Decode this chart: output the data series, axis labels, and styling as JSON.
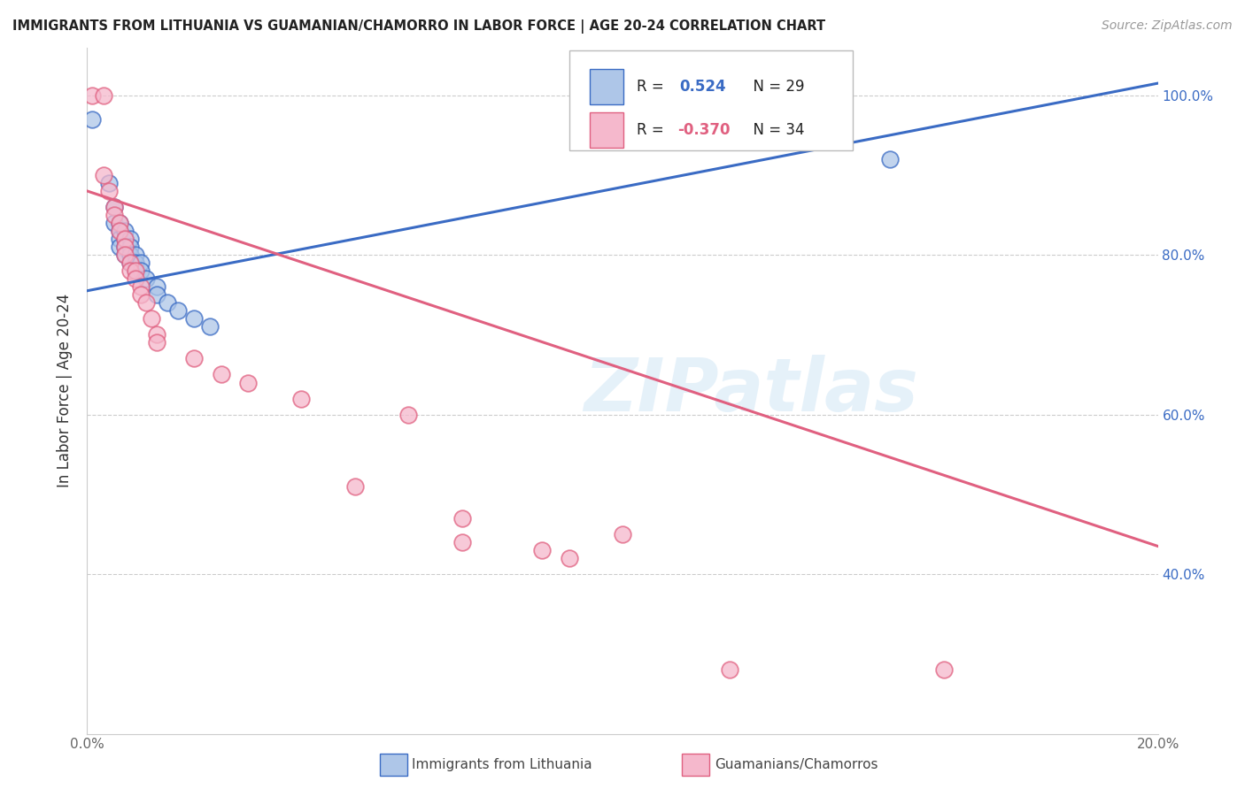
{
  "title": "IMMIGRANTS FROM LITHUANIA VS GUAMANIAN/CHAMORRO IN LABOR FORCE | AGE 20-24 CORRELATION CHART",
  "source": "Source: ZipAtlas.com",
  "ylabel": "In Labor Force | Age 20-24",
  "xlim": [
    0.0,
    0.2
  ],
  "ylim": [
    0.2,
    1.06
  ],
  "xticks": [
    0.0,
    0.02,
    0.04,
    0.06,
    0.08,
    0.1,
    0.12,
    0.14,
    0.16,
    0.18,
    0.2
  ],
  "yticks": [
    0.4,
    0.6,
    0.8,
    1.0
  ],
  "yticklabels": [
    "40.0%",
    "60.0%",
    "80.0%",
    "100.0%"
  ],
  "r_blue": 0.524,
  "n_blue": 29,
  "r_pink": -0.37,
  "n_pink": 34,
  "legend_label_blue": "Immigrants from Lithuania",
  "legend_label_pink": "Guamanians/Chamorros",
  "blue_color": "#aec6e8",
  "pink_color": "#f5b8cc",
  "blue_line_color": "#3a6bc4",
  "pink_line_color": "#e06080",
  "blue_scatter": [
    [
      0.001,
      0.97
    ],
    [
      0.004,
      0.89
    ],
    [
      0.005,
      0.86
    ],
    [
      0.005,
      0.84
    ],
    [
      0.006,
      0.84
    ],
    [
      0.006,
      0.83
    ],
    [
      0.006,
      0.82
    ],
    [
      0.006,
      0.81
    ],
    [
      0.007,
      0.83
    ],
    [
      0.007,
      0.82
    ],
    [
      0.007,
      0.81
    ],
    [
      0.007,
      0.8
    ],
    [
      0.008,
      0.82
    ],
    [
      0.008,
      0.81
    ],
    [
      0.008,
      0.8
    ],
    [
      0.008,
      0.79
    ],
    [
      0.009,
      0.8
    ],
    [
      0.009,
      0.79
    ],
    [
      0.009,
      0.78
    ],
    [
      0.01,
      0.79
    ],
    [
      0.01,
      0.78
    ],
    [
      0.011,
      0.77
    ],
    [
      0.013,
      0.76
    ],
    [
      0.013,
      0.75
    ],
    [
      0.015,
      0.74
    ],
    [
      0.017,
      0.73
    ],
    [
      0.02,
      0.72
    ],
    [
      0.023,
      0.71
    ],
    [
      0.15,
      0.92
    ]
  ],
  "pink_scatter": [
    [
      0.001,
      1.0
    ],
    [
      0.003,
      1.0
    ],
    [
      0.003,
      0.9
    ],
    [
      0.004,
      0.88
    ],
    [
      0.005,
      0.86
    ],
    [
      0.005,
      0.85
    ],
    [
      0.006,
      0.84
    ],
    [
      0.006,
      0.83
    ],
    [
      0.007,
      0.82
    ],
    [
      0.007,
      0.81
    ],
    [
      0.007,
      0.8
    ],
    [
      0.008,
      0.79
    ],
    [
      0.008,
      0.78
    ],
    [
      0.009,
      0.78
    ],
    [
      0.009,
      0.77
    ],
    [
      0.01,
      0.76
    ],
    [
      0.01,
      0.75
    ],
    [
      0.011,
      0.74
    ],
    [
      0.012,
      0.72
    ],
    [
      0.013,
      0.7
    ],
    [
      0.013,
      0.69
    ],
    [
      0.02,
      0.67
    ],
    [
      0.025,
      0.65
    ],
    [
      0.03,
      0.64
    ],
    [
      0.04,
      0.62
    ],
    [
      0.05,
      0.51
    ],
    [
      0.06,
      0.6
    ],
    [
      0.07,
      0.47
    ],
    [
      0.07,
      0.44
    ],
    [
      0.085,
      0.43
    ],
    [
      0.09,
      0.42
    ],
    [
      0.1,
      0.45
    ],
    [
      0.12,
      0.28
    ],
    [
      0.16,
      0.28
    ]
  ],
  "blue_line_x": [
    0.0,
    0.2
  ],
  "blue_line_y": [
    0.755,
    1.015
  ],
  "pink_line_x": [
    0.0,
    0.2
  ],
  "pink_line_y": [
    0.88,
    0.435
  ],
  "watermark": "ZIPatlas",
  "background_color": "#ffffff",
  "grid_color": "#cccccc"
}
